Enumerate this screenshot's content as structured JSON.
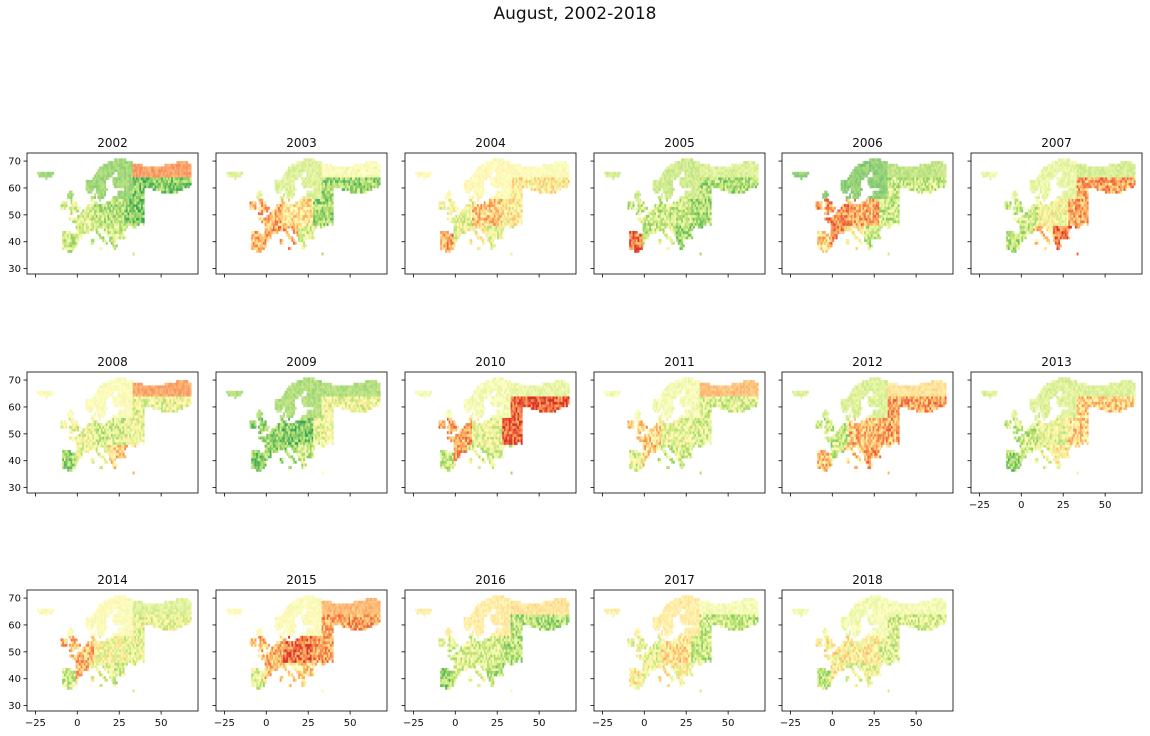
{
  "figure": {
    "title": "August, 2002-2018"
  },
  "chart_data": {
    "type": "heatmap",
    "title": "August, 2002-2018",
    "xlabel": "",
    "ylabel": "",
    "xlim": [
      -30,
      72
    ],
    "ylim": [
      28,
      73
    ],
    "xticks": [
      -25,
      0,
      25,
      50
    ],
    "xtick_labels": [
      "−25",
      "0",
      "25",
      "50"
    ],
    "yticks": [
      30,
      40,
      50,
      60,
      70
    ],
    "ytick_labels": [
      "30",
      "40",
      "50",
      "60",
      "70"
    ],
    "grid": false,
    "legend": "none",
    "layout": {
      "rows": 3,
      "cols": 6
    },
    "colormap": [
      "#d73027",
      "#f46d43",
      "#fdae61",
      "#fee08b",
      "#ffffbf",
      "#d9ef8b",
      "#a6d96a",
      "#66bd63",
      "#1a9850"
    ],
    "panels": [
      {
        "title": "2002",
        "regional_anomaly": {
          "iberia": 0.3,
          "west": 0.2,
          "central": 0.35,
          "east": 0.6,
          "scandinavia": 0.7,
          "northeast": -0.75,
          "italy": 0.25,
          "balkans": 0.3
        }
      },
      {
        "title": "2003",
        "regional_anomaly": {
          "iberia": -0.4,
          "west": -0.45,
          "central": -0.2,
          "east": 0.5,
          "scandinavia": 0.3,
          "northeast": 0.05,
          "italy": -0.5,
          "balkans": 0.2
        }
      },
      {
        "title": "2004",
        "regional_anomaly": {
          "iberia": -0.5,
          "west": 0.1,
          "central": -0.35,
          "east": -0.1,
          "scandinavia": -0.05,
          "northeast": 0.0,
          "italy": -0.1,
          "balkans": 0.1
        }
      },
      {
        "title": "2005",
        "regional_anomaly": {
          "iberia": -0.7,
          "west": 0.3,
          "central": 0.3,
          "east": 0.45,
          "scandinavia": 0.4,
          "northeast": 0.3,
          "italy": 0.2,
          "balkans": 0.5
        }
      },
      {
        "title": "2006",
        "regional_anomaly": {
          "iberia": -0.3,
          "west": -0.6,
          "central": -0.5,
          "east": 0.3,
          "scandinavia": 0.8,
          "northeast": 0.5,
          "italy": -0.1,
          "balkans": 0.3
        }
      },
      {
        "title": "2007",
        "regional_anomaly": {
          "iberia": 0.4,
          "west": 0.3,
          "central": 0.0,
          "east": -0.5,
          "scandinavia": 0.2,
          "northeast": 0.35,
          "italy": -0.3,
          "balkans": -0.7
        }
      },
      {
        "title": "2008",
        "regional_anomaly": {
          "iberia": 0.5,
          "west": 0.1,
          "central": 0.25,
          "east": 0.1,
          "scandinavia": 0.0,
          "northeast": -0.7,
          "italy": 0.1,
          "balkans": -0.3
        }
      },
      {
        "title": "2009",
        "regional_anomaly": {
          "iberia": 0.6,
          "west": 0.5,
          "central": 0.6,
          "east": 0.1,
          "scandinavia": 0.6,
          "northeast": 0.6,
          "italy": 0.5,
          "balkans": 0.3
        }
      },
      {
        "title": "2010",
        "regional_anomaly": {
          "iberia": 0.3,
          "west": -0.5,
          "central": 0.1,
          "east": -0.8,
          "scandinavia": 0.1,
          "northeast": 0.2,
          "italy": 0.2,
          "balkans": 0.2
        }
      },
      {
        "title": "2011",
        "regional_anomaly": {
          "iberia": 0.2,
          "west": -0.3,
          "central": 0.1,
          "east": 0.2,
          "scandinavia": 0.1,
          "northeast": -0.55,
          "italy": 0.3,
          "balkans": 0.2
        }
      },
      {
        "title": "2012",
        "regional_anomaly": {
          "iberia": -0.4,
          "west": 0.3,
          "central": -0.4,
          "east": -0.5,
          "scandinavia": 0.3,
          "northeast": -0.3,
          "italy": -0.3,
          "balkans": -0.5
        }
      },
      {
        "title": "2013",
        "regional_anomaly": {
          "iberia": 0.5,
          "west": 0.3,
          "central": 0.1,
          "east": -0.3,
          "scandinavia": 0.3,
          "northeast": 0.3,
          "italy": 0.1,
          "balkans": -0.1
        }
      },
      {
        "title": "2014",
        "regional_anomaly": {
          "iberia": 0.3,
          "west": -0.4,
          "central": 0.0,
          "east": 0.1,
          "scandinavia": 0.0,
          "northeast": 0.3,
          "italy": 0.1,
          "balkans": 0.2
        }
      },
      {
        "title": "2015",
        "regional_anomaly": {
          "iberia": 0.2,
          "west": -0.4,
          "central": -0.7,
          "east": -0.5,
          "scandinavia": 0.0,
          "northeast": -0.6,
          "italy": -0.3,
          "balkans": -0.3
        }
      },
      {
        "title": "2016",
        "regional_anomaly": {
          "iberia": 0.5,
          "west": 0.2,
          "central": 0.2,
          "east": 0.4,
          "scandinavia": -0.2,
          "northeast": -0.3,
          "italy": 0.2,
          "balkans": 0.4
        }
      },
      {
        "title": "2017",
        "regional_anomaly": {
          "iberia": -0.1,
          "west": 0.1,
          "central": -0.2,
          "east": 0.3,
          "scandinavia": -0.2,
          "northeast": 0.1,
          "italy": -0.1,
          "balkans": 0.0
        }
      },
      {
        "title": "2018",
        "regional_anomaly": {
          "iberia": 0.3,
          "west": -0.1,
          "central": -0.1,
          "east": 0.2,
          "scandinavia": 0.1,
          "northeast": 0.1,
          "italy": 0.1,
          "balkans": 0.1
        }
      }
    ]
  }
}
